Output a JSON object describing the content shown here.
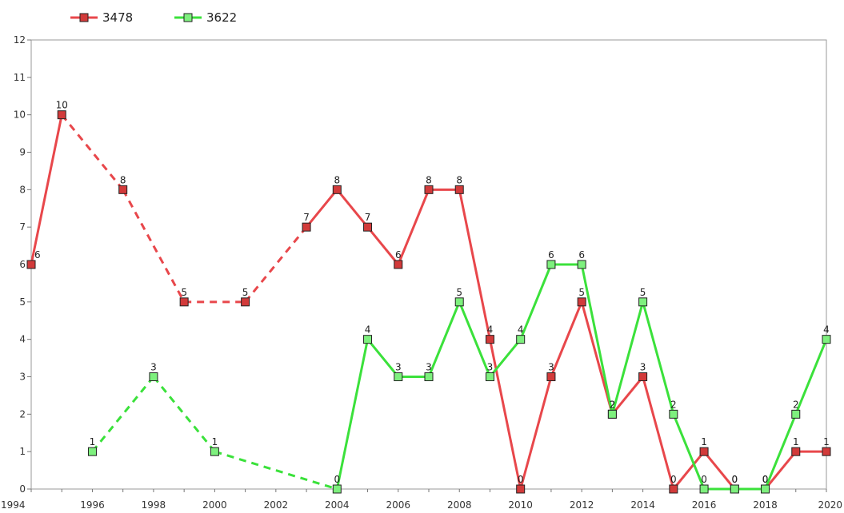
{
  "chart_data": {
    "type": "line",
    "title": "",
    "xlabel": "",
    "ylabel": "",
    "xlim": [
      1994,
      2020
    ],
    "ylim": [
      0,
      12
    ],
    "x_ticks": [
      1994,
      1996,
      1998,
      2000,
      2002,
      2004,
      2006,
      2008,
      2010,
      2012,
      2014,
      2016,
      2018,
      2020
    ],
    "y_ticks": [
      0,
      1,
      2,
      3,
      4,
      5,
      6,
      7,
      8,
      9,
      10,
      11,
      12
    ],
    "legend_position": "top-left",
    "grid": false,
    "series": [
      {
        "name": "3478",
        "color": "#e8474b",
        "marker_fill": "#d23a3a",
        "points": [
          {
            "x": 1994,
            "y": 6
          },
          {
            "x": 1995,
            "y": 10
          },
          {
            "x": 1997,
            "y": 8
          },
          {
            "x": 1999,
            "y": 5
          },
          {
            "x": 2001,
            "y": 5
          },
          {
            "x": 2003,
            "y": 7
          },
          {
            "x": 2004,
            "y": 8
          },
          {
            "x": 2005,
            "y": 7
          },
          {
            "x": 2006,
            "y": 6
          },
          {
            "x": 2007,
            "y": 8
          },
          {
            "x": 2008,
            "y": 8
          },
          {
            "x": 2009,
            "y": 4
          },
          {
            "x": 2010,
            "y": 0
          },
          {
            "x": 2011,
            "y": 3
          },
          {
            "x": 2012,
            "y": 5
          },
          {
            "x": 2013,
            "y": 2
          },
          {
            "x": 2014,
            "y": 3
          },
          {
            "x": 2015,
            "y": 0
          },
          {
            "x": 2016,
            "y": 1
          },
          {
            "x": 2017,
            "y": 0
          },
          {
            "x": 2018,
            "y": 0
          },
          {
            "x": 2019,
            "y": 1
          },
          {
            "x": 2020,
            "y": 1
          }
        ]
      },
      {
        "name": "3622",
        "color": "#3be13b",
        "marker_fill": "#7ef07e",
        "points": [
          {
            "x": 1996,
            "y": 1
          },
          {
            "x": 1998,
            "y": 3
          },
          {
            "x": 2000,
            "y": 1
          },
          {
            "x": 2004,
            "y": 0
          },
          {
            "x": 2005,
            "y": 4
          },
          {
            "x": 2006,
            "y": 3
          },
          {
            "x": 2007,
            "y": 3
          },
          {
            "x": 2008,
            "y": 5
          },
          {
            "x": 2009,
            "y": 3
          },
          {
            "x": 2010,
            "y": 4
          },
          {
            "x": 2011,
            "y": 6
          },
          {
            "x": 2012,
            "y": 6
          },
          {
            "x": 2013,
            "y": 2
          },
          {
            "x": 2014,
            "y": 5
          },
          {
            "x": 2015,
            "y": 2
          },
          {
            "x": 2016,
            "y": 0
          },
          {
            "x": 2017,
            "y": 0
          },
          {
            "x": 2018,
            "y": 0
          },
          {
            "x": 2019,
            "y": 2
          },
          {
            "x": 2020,
            "y": 4
          }
        ]
      }
    ]
  }
}
